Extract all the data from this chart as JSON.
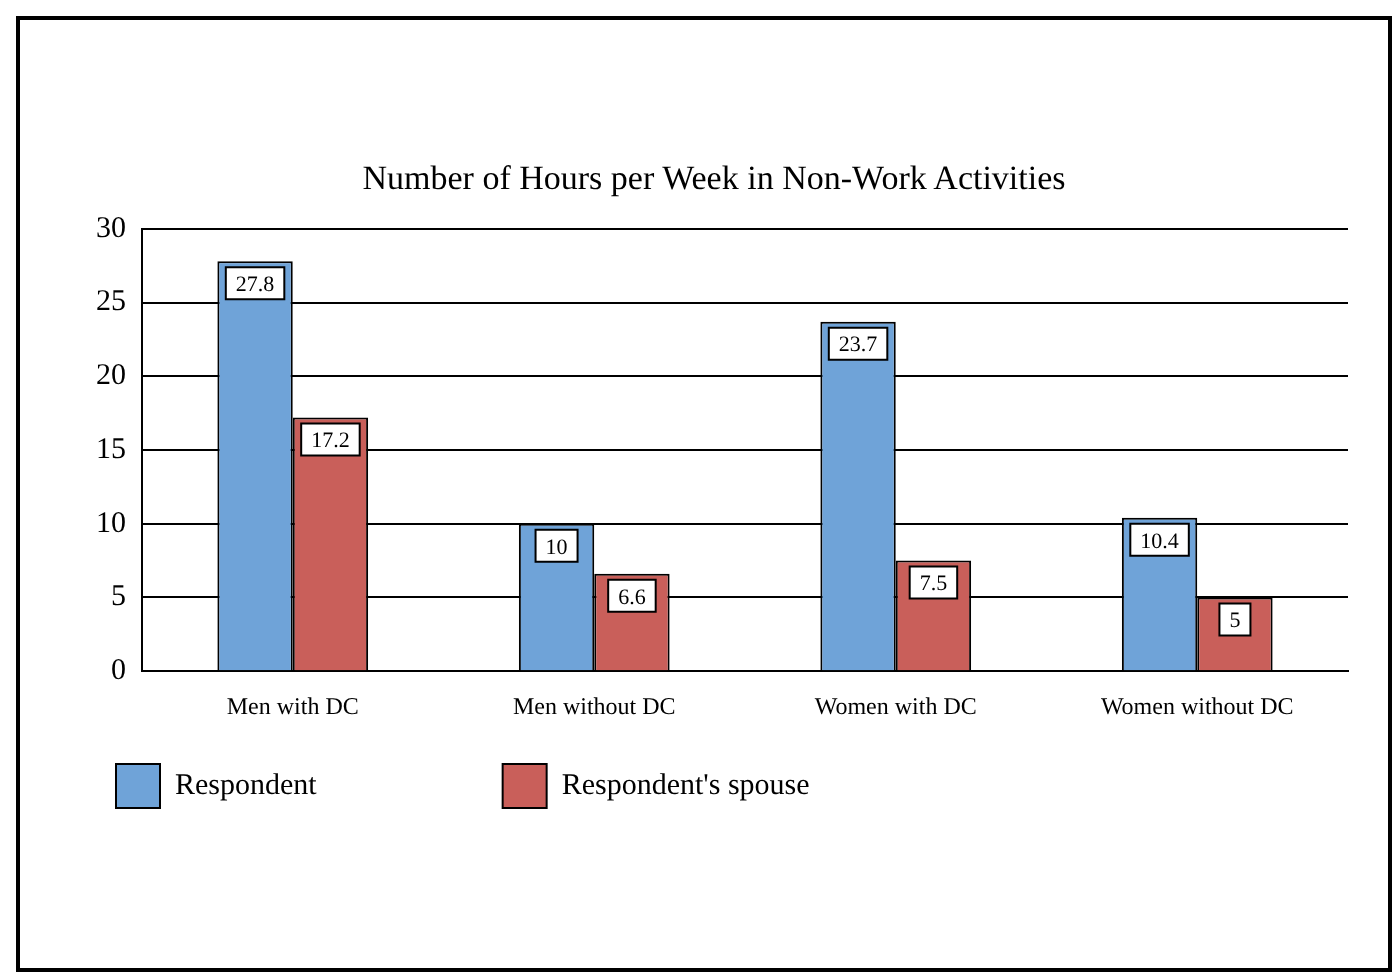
{
  "chart_data": {
    "type": "bar",
    "title": "Number of Hours per Week in Non-Work Activities",
    "categories": [
      "Men with DC",
      "Men without DC",
      "Women with DC",
      "Women without DC"
    ],
    "series": [
      {
        "name": "Respondent",
        "color": "#6fa3d8",
        "values": [
          27.8,
          10,
          23.7,
          10.4
        ]
      },
      {
        "name": "Respondent's spouse",
        "color": "#c95f5a",
        "values": [
          17.2,
          6.6,
          7.5,
          5
        ]
      }
    ],
    "ylim": [
      0,
      30
    ],
    "yticks": [
      0,
      5,
      10,
      15,
      20,
      25,
      30
    ],
    "grid": "y",
    "legend": "bottom",
    "data_labels": true
  }
}
